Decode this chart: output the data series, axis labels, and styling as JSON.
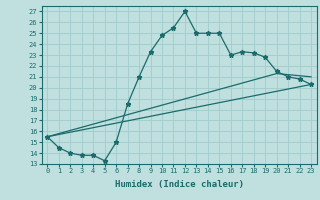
{
  "title": "",
  "xlabel": "Humidex (Indice chaleur)",
  "background_color": "#c0e0e0",
  "grid_color": "#a0cccc",
  "line_color": "#1a6b6b",
  "xlim": [
    -0.5,
    23.5
  ],
  "ylim": [
    13.0,
    27.5
  ],
  "xticks": [
    0,
    1,
    2,
    3,
    4,
    5,
    6,
    7,
    8,
    9,
    10,
    11,
    12,
    13,
    14,
    15,
    16,
    17,
    18,
    19,
    20,
    21,
    22,
    23
  ],
  "yticks": [
    13,
    14,
    15,
    16,
    17,
    18,
    19,
    20,
    21,
    22,
    23,
    24,
    25,
    26,
    27
  ],
  "line1_x": [
    0,
    1,
    2,
    3,
    4,
    5,
    6,
    7,
    8,
    9,
    10,
    11,
    12,
    13,
    14,
    15,
    16,
    17,
    18,
    19,
    20,
    21,
    22,
    23
  ],
  "line1_y": [
    15.5,
    14.5,
    14.0,
    13.8,
    13.8,
    13.3,
    15.0,
    18.5,
    21.0,
    23.3,
    24.8,
    25.5,
    27.0,
    25.0,
    25.0,
    25.0,
    23.0,
    23.3,
    23.2,
    22.8,
    21.5,
    21.0,
    20.8,
    20.3
  ],
  "line2_x": [
    0,
    20,
    23
  ],
  "line2_y": [
    15.5,
    21.3,
    21.0
  ],
  "line3_x": [
    0,
    23
  ],
  "line3_y": [
    15.5,
    20.3
  ],
  "xlabel_fontsize": 6.5,
  "tick_fontsize": 5.0
}
